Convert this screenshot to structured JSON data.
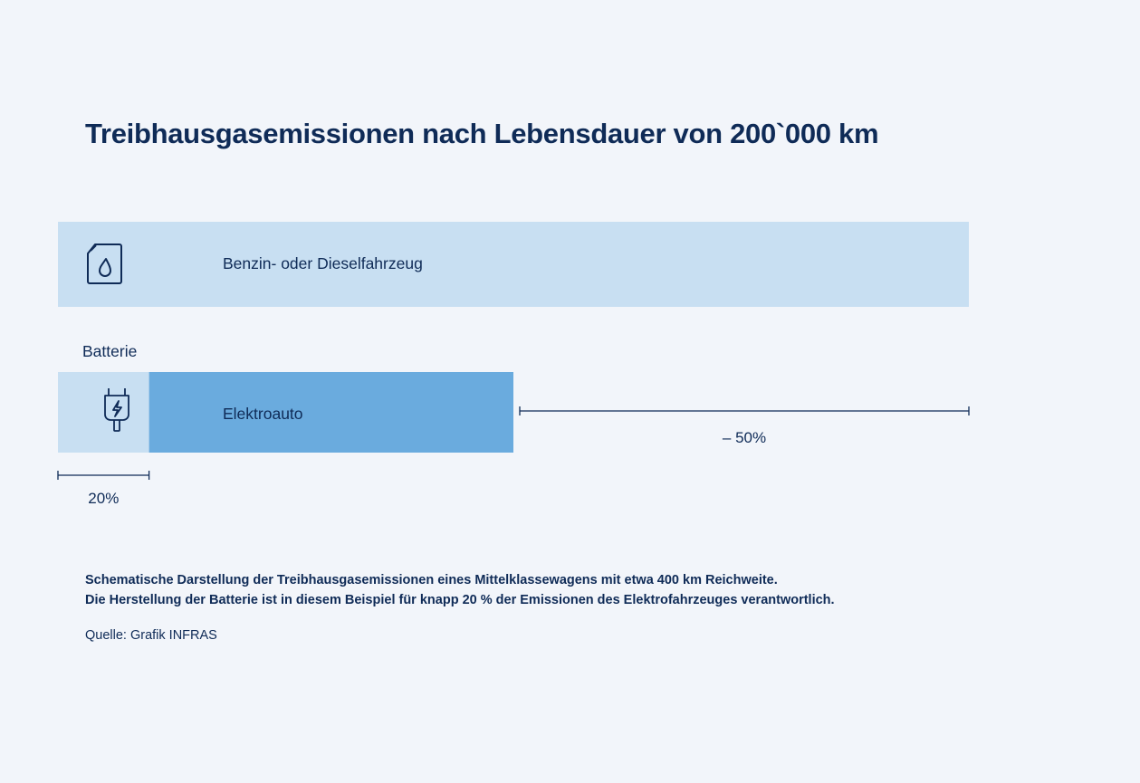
{
  "title": "Treibhausgasemissionen nach Lebensdauer von 200`000 km",
  "chart_data": {
    "type": "bar",
    "orientation": "horizontal",
    "stacked": true,
    "schematic": true,
    "categories": [
      "Benzin- oder Dieselfahrzeug",
      "Elektroauto"
    ],
    "series": [
      {
        "name": "Batterie",
        "values": [
          0,
          10
        ]
      },
      {
        "name": "",
        "values": [
          100,
          40
        ]
      }
    ],
    "xlim": [
      0,
      100
    ],
    "annotations": [
      {
        "text": "20%",
        "from": 0,
        "to": 10,
        "row": "Elektroauto",
        "position": "below"
      },
      {
        "text": "– 50%",
        "from": 50,
        "to": 100,
        "row": "Elektroauto",
        "position": "right"
      }
    ],
    "icons": [
      "fuel-canister-icon",
      "plug-icon"
    ],
    "colors": {
      "combustion": "#c8dff2",
      "battery": "#c8dff2",
      "electric": "#6aabde",
      "text": "#0f2b57"
    }
  },
  "notes": [
    "Schematische Darstellung der Treibhausgasemissionen eines Mittelklassewagens mit etwa 400 km Reichweite.",
    "Die Herstellung der Batterie ist in diesem Beispiel für knapp 20 % der Emissionen des Elektrofahrzeuges verantwortlich."
  ],
  "source": "Quelle: Grafik INFRAS"
}
